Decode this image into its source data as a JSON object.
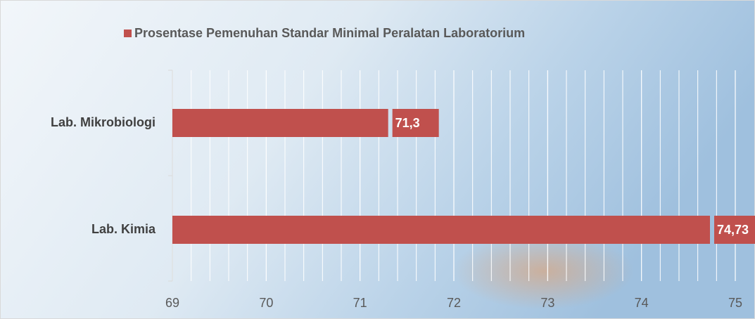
{
  "chart_data": {
    "type": "hbar",
    "legend_label": "Prosentase Pemenuhan Standar Minimal Peralatan Laboratorium",
    "categories": [
      "Lab. Mikrobiologi",
      "Lab. Kimia"
    ],
    "values": [
      71.3,
      74.73
    ],
    "value_labels": [
      "71,3",
      "74,73"
    ],
    "color": "#c0504d",
    "xlim": [
      69,
      75
    ],
    "xticks": [
      69,
      70,
      71,
      72,
      73,
      74,
      75
    ],
    "grid": true
  }
}
